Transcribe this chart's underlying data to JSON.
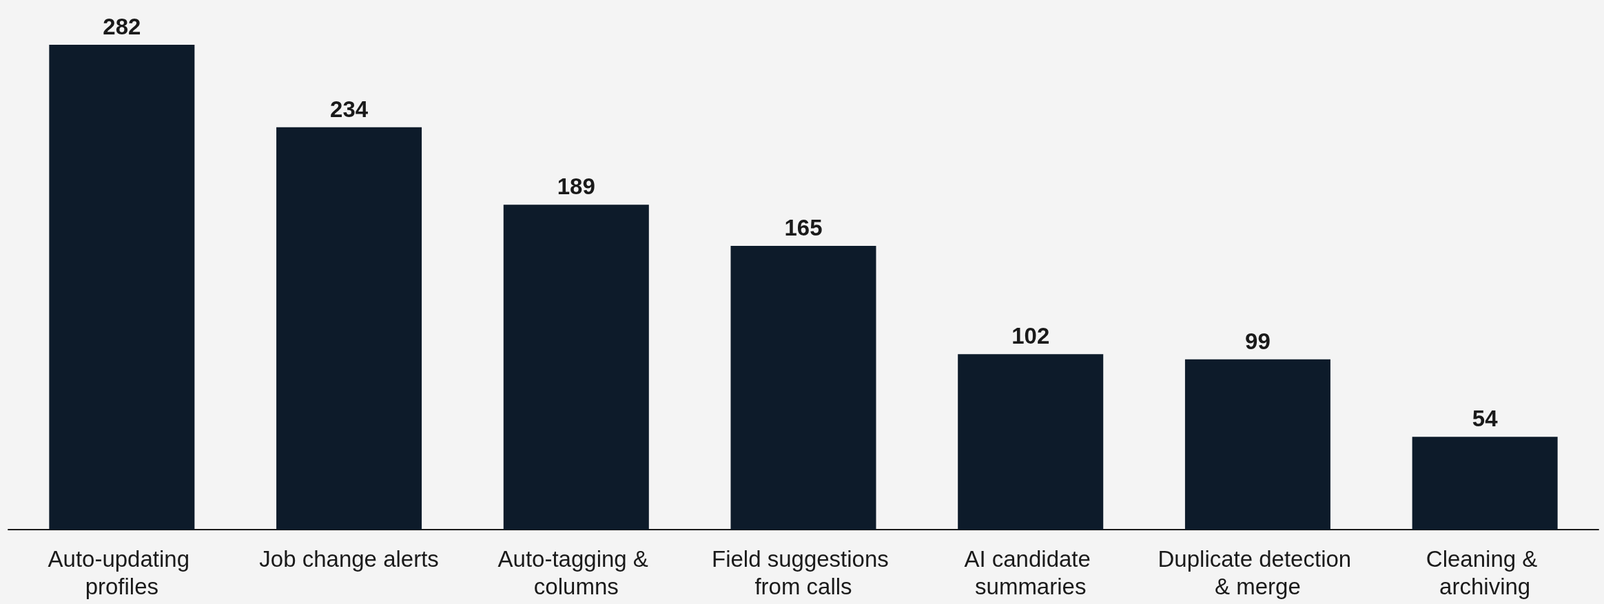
{
  "chart_data": {
    "type": "bar",
    "categories": [
      "Auto-updating profiles",
      "Job change alerts",
      "Auto-tagging & columns",
      "Field suggestions from calls",
      "AI candidate summaries",
      "Duplicate detection & merge",
      "Cleaning & archiving"
    ],
    "values": [
      282,
      234,
      189,
      165,
      102,
      99,
      54
    ],
    "color": "#0d1b2a",
    "data_labels": true
  }
}
